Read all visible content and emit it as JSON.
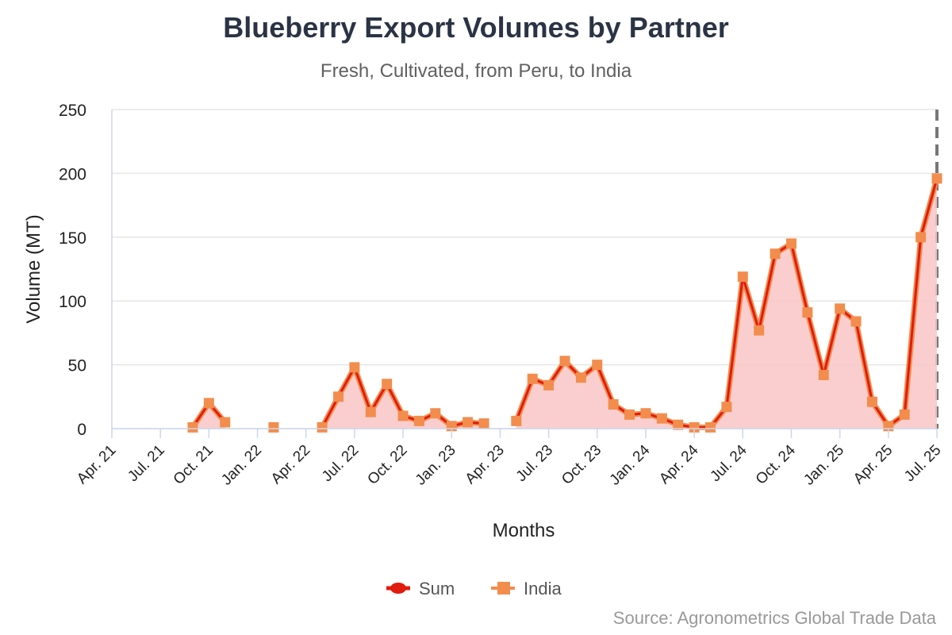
{
  "title": "Blueberry Export Volumes by Partner",
  "subtitle": "Fresh, Cultivated, from Peru, to India",
  "credits": "Source: Agronometrics Global Trade Data",
  "chart_data": {
    "type": "area",
    "title": "Blueberry Export Volumes by Partner",
    "subtitle": "Fresh, Cultivated, from Peru, to India",
    "xlabel": "Months",
    "ylabel": "Volume (MT)",
    "ylim": [
      0,
      250
    ],
    "yticks": [
      0,
      50,
      100,
      150,
      200,
      250
    ],
    "xlim": [
      "Apr. 21",
      "Jul. 25"
    ],
    "xtick_labels": [
      "Apr. 21",
      "Jul. 21",
      "Oct. 21",
      "Jan. 22",
      "Apr. 22",
      "Jul. 22",
      "Oct. 22",
      "Jan. 23",
      "Apr. 23",
      "Jul. 23",
      "Oct. 23",
      "Jan. 24",
      "Apr. 24",
      "Jul. 24",
      "Oct. 24",
      "Jan. 25",
      "Apr. 25",
      "Jul. 25"
    ],
    "grid": true,
    "legend_position": "bottom-center",
    "colors": {
      "sum_line": "#e01c0e",
      "sum_fill": "#f9c6c6",
      "india": "#f28d4e",
      "grid": "#e6e6e6",
      "axis": "#ccd6eb",
      "plotline": "#777777"
    },
    "x": [
      "Apr. 21",
      "May 21",
      "Jun. 21",
      "Jul. 21",
      "Aug. 21",
      "Sep. 21",
      "Oct. 21",
      "Nov. 21",
      "Dec. 21",
      "Jan. 22",
      "Feb. 22",
      "Mar. 22",
      "Apr. 22",
      "May 22",
      "Jun. 22",
      "Jul. 22",
      "Aug. 22",
      "Sep. 22",
      "Oct. 22",
      "Nov. 22",
      "Dec. 22",
      "Jan. 23",
      "Feb. 23",
      "Mar. 23",
      "Apr. 23",
      "May 23",
      "Jun. 23",
      "Jul. 23",
      "Aug. 23",
      "Sep. 23",
      "Oct. 23",
      "Nov. 23",
      "Dec. 23",
      "Jan. 24",
      "Feb. 24",
      "Mar. 24",
      "Apr. 24",
      "May 24",
      "Jun. 24",
      "Jul. 24",
      "Aug. 24",
      "Sep. 24",
      "Oct. 24",
      "Nov. 24",
      "Dec. 24",
      "Jan. 25",
      "Feb. 25",
      "Mar. 25",
      "Apr. 25",
      "May 25",
      "Jun. 25",
      "Jul. 25"
    ],
    "series": [
      {
        "name": "Sum",
        "values": [
          null,
          null,
          null,
          null,
          null,
          1,
          20,
          5,
          null,
          null,
          1,
          null,
          null,
          1,
          25,
          48,
          13,
          35,
          10,
          6,
          12,
          2,
          5,
          4,
          null,
          6,
          39,
          34,
          53,
          40,
          50,
          19,
          11,
          12,
          8,
          3,
          1,
          1,
          17,
          119,
          77,
          137,
          145,
          91,
          42,
          94,
          84,
          21,
          2,
          11,
          150,
          196
        ]
      },
      {
        "name": "India",
        "values": [
          null,
          null,
          null,
          null,
          null,
          1,
          20,
          5,
          null,
          null,
          1,
          null,
          null,
          1,
          25,
          48,
          13,
          35,
          10,
          6,
          12,
          2,
          5,
          4,
          null,
          6,
          39,
          34,
          53,
          40,
          50,
          19,
          11,
          12,
          8,
          3,
          1,
          1,
          17,
          119,
          77,
          137,
          145,
          91,
          42,
          94,
          84,
          21,
          2,
          11,
          150,
          196
        ]
      }
    ]
  }
}
